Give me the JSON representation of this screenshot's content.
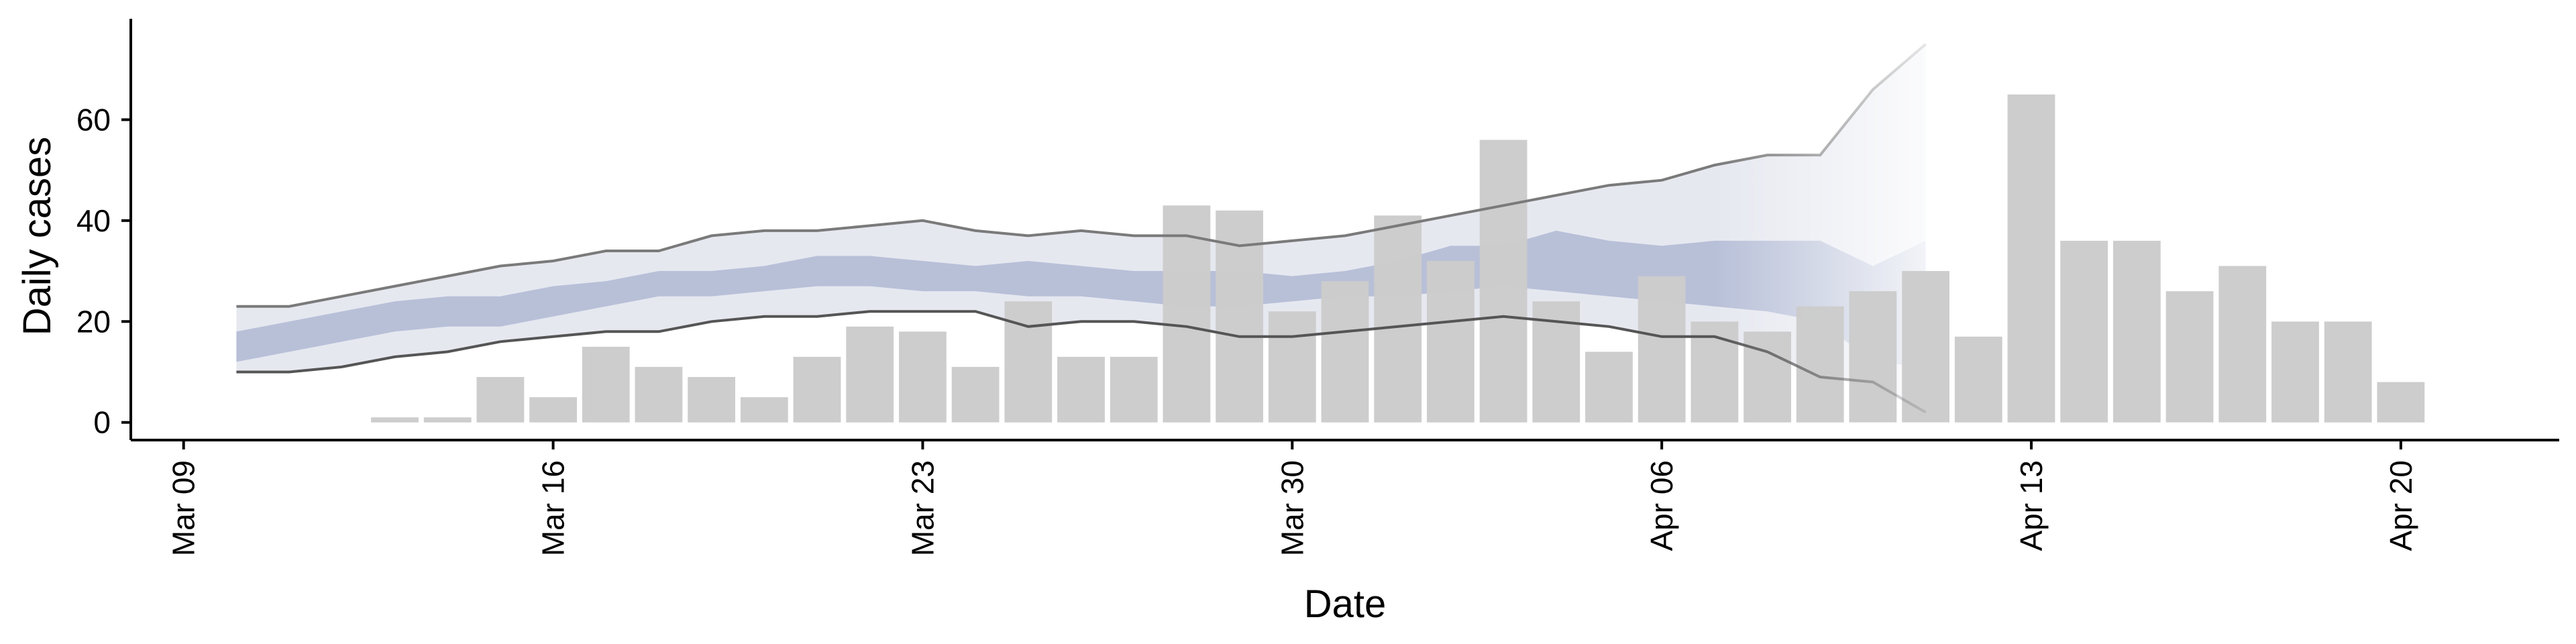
{
  "chart_data": {
    "type": "bar",
    "title": "",
    "xlabel": "Date",
    "ylabel": "Daily cases",
    "x_range": [
      "2020-03-08",
      "2020-04-23"
    ],
    "ylim": [
      -3.5,
      80
    ],
    "grid": false,
    "legend": "none",
    "x_ticks": [
      {
        "date": "2020-03-09",
        "label": "Mar 09"
      },
      {
        "date": "2020-03-16",
        "label": "Mar 16"
      },
      {
        "date": "2020-03-23",
        "label": "Mar 23"
      },
      {
        "date": "2020-03-30",
        "label": "Mar 30"
      },
      {
        "date": "2020-04-06",
        "label": "Apr 06"
      },
      {
        "date": "2020-04-13",
        "label": "Apr 13"
      },
      {
        "date": "2020-04-20",
        "label": "Apr 20"
      }
    ],
    "y_ticks": [
      0,
      20,
      40,
      60
    ],
    "colors": {
      "bars": "#cccccc",
      "band_outer": "#e6e8f0",
      "band_inner": "#b8c0d8",
      "interval_lines": "#7a7a7a"
    },
    "bars": {
      "name": "",
      "dates": [
        "2020-03-13",
        "2020-03-14",
        "2020-03-15",
        "2020-03-16",
        "2020-03-17",
        "2020-03-18",
        "2020-03-19",
        "2020-03-20",
        "2020-03-21",
        "2020-03-22",
        "2020-03-23",
        "2020-03-24",
        "2020-03-25",
        "2020-03-26",
        "2020-03-27",
        "2020-03-28",
        "2020-03-29",
        "2020-03-30",
        "2020-03-31",
        "2020-04-01",
        "2020-04-02",
        "2020-04-03",
        "2020-04-04",
        "2020-04-05",
        "2020-04-06",
        "2020-04-07",
        "2020-04-08",
        "2020-04-09",
        "2020-04-10",
        "2020-04-11",
        "2020-04-12",
        "2020-04-13",
        "2020-04-14",
        "2020-04-15",
        "2020-04-16",
        "2020-04-17",
        "2020-04-18",
        "2020-04-19",
        "2020-04-20"
      ],
      "values": [
        1,
        1,
        9,
        5,
        15,
        11,
        9,
        5,
        13,
        19,
        18,
        11,
        24,
        13,
        13,
        43,
        42,
        22,
        28,
        41,
        32,
        56,
        24,
        14,
        29,
        20,
        18,
        23,
        26,
        30,
        17,
        65,
        36,
        36,
        26,
        31,
        20,
        20,
        8
      ]
    },
    "estimate": {
      "dates": [
        "2020-03-10",
        "2020-03-11",
        "2020-03-12",
        "2020-03-13",
        "2020-03-14",
        "2020-03-15",
        "2020-03-16",
        "2020-03-17",
        "2020-03-18",
        "2020-03-19",
        "2020-03-20",
        "2020-03-21",
        "2020-03-22",
        "2020-03-23",
        "2020-03-24",
        "2020-03-25",
        "2020-03-26",
        "2020-03-27",
        "2020-03-28",
        "2020-03-29",
        "2020-03-30",
        "2020-03-31",
        "2020-04-01",
        "2020-04-02",
        "2020-04-03",
        "2020-04-04",
        "2020-04-05",
        "2020-04-06",
        "2020-04-07",
        "2020-04-08",
        "2020-04-09",
        "2020-04-10",
        "2020-04-11"
      ],
      "outer_lower": [
        10,
        10,
        11,
        13,
        14,
        16,
        17,
        18,
        18,
        20,
        21,
        21,
        22,
        22,
        22,
        19,
        20,
        20,
        19,
        17,
        17,
        18,
        19,
        20,
        21,
        20,
        19,
        17,
        17,
        14,
        9,
        8,
        2
      ],
      "outer_upper": [
        23,
        23,
        25,
        27,
        29,
        31,
        32,
        34,
        34,
        37,
        38,
        38,
        39,
        40,
        38,
        37,
        38,
        37,
        37,
        35,
        36,
        37,
        39,
        41,
        43,
        45,
        47,
        48,
        51,
        53,
        53,
        66,
        75
      ],
      "inner_lower": [
        12,
        14,
        16,
        18,
        19,
        19,
        21,
        23,
        25,
        25,
        26,
        27,
        27,
        26,
        26,
        25,
        25,
        24,
        23,
        23,
        24,
        25,
        25,
        26,
        27,
        26,
        25,
        24,
        23,
        22,
        20,
        12,
        11
      ],
      "inner_upper": [
        18,
        20,
        22,
        24,
        25,
        25,
        27,
        28,
        30,
        30,
        31,
        33,
        33,
        32,
        31,
        32,
        31,
        30,
        30,
        30,
        29,
        30,
        32,
        35,
        35,
        38,
        36,
        35,
        36,
        36,
        36,
        31,
        36
      ],
      "forecast_start": "2020-04-07"
    }
  }
}
